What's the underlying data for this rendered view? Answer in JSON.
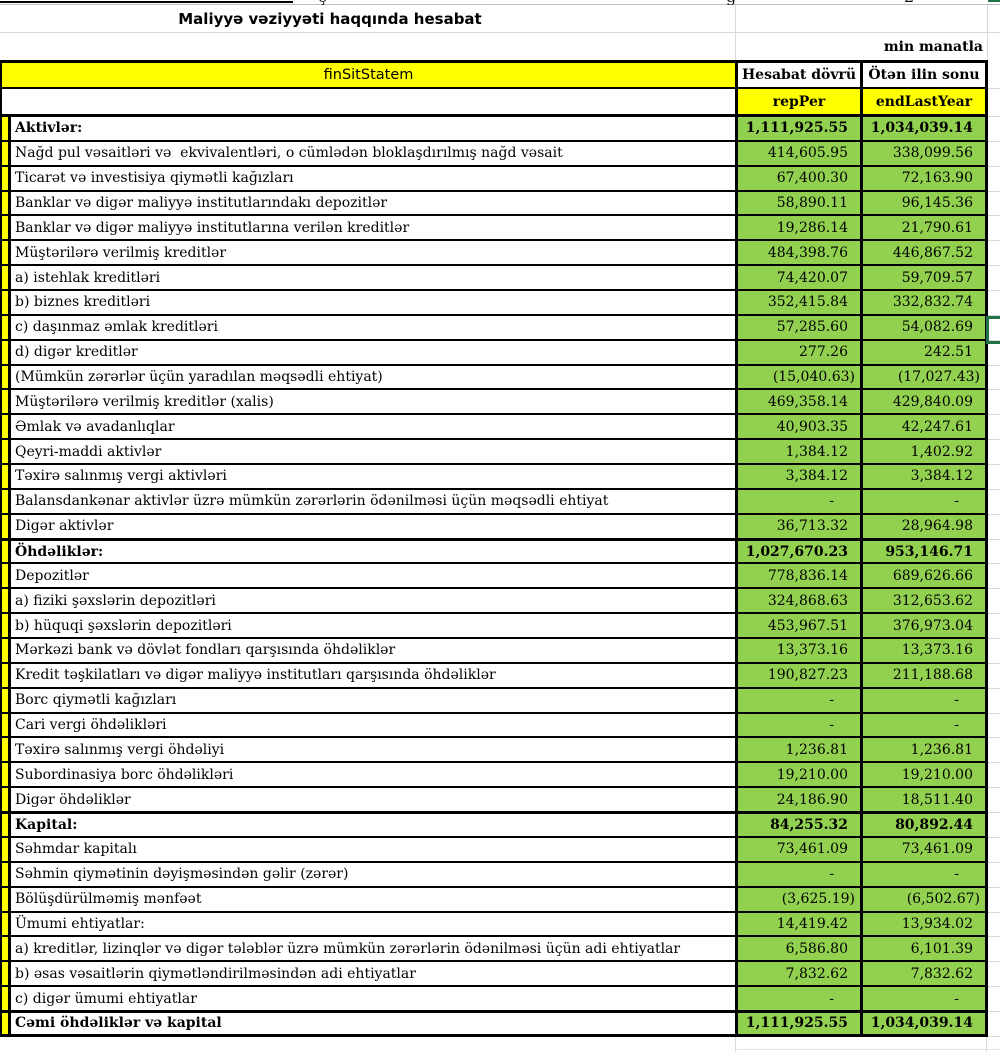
{
  "title": "Maliyyə vəziyyəti haqqında hesabat",
  "unit_note": "min manatla",
  "top_fragments": [
    "ç",
    "ğ",
    "2"
  ],
  "colors": {
    "header_fill": "#FFFF00",
    "value_fill": "#92D050",
    "selection_green": "#217346",
    "border": "#000000",
    "gridline": "#D9D9D9"
  },
  "table": {
    "name_header": "finSitStatem",
    "col_headers": [
      "Hesabat dövrü",
      "Ötən ilin sonu"
    ],
    "code_headers": [
      "repPer",
      "endLastYear"
    ],
    "selected_row_label": "c) daşınmaz əmlak kreditləri",
    "rows": [
      {
        "label": "Aktivlər:",
        "v1": "1,111,925.55",
        "v2": "1,034,039.14",
        "bold": true,
        "section": false
      },
      {
        "label": "Nağd pul vəsaitləri və  ekvivalentləri, o cümlədən bloklaşdırılmış nağd vəsait",
        "v1": "414,605.95",
        "v2": "338,099.56",
        "bold": false,
        "section": false
      },
      {
        "label": "Ticarət və investisiya qiymətli kağızları",
        "v1": "67,400.30",
        "v2": "72,163.90",
        "bold": false,
        "section": false
      },
      {
        "label": "Banklar və digər maliyyə institutlarındakı depozitlər",
        "v1": "58,890.11",
        "v2": "96,145.36",
        "bold": false,
        "section": false
      },
      {
        "label": "Banklar və digər maliyyə institutlarına verilən kreditlər",
        "v1": "19,286.14",
        "v2": "21,790.61",
        "bold": false,
        "section": false
      },
      {
        "label": "Müştərilərə verilmiş kreditlər",
        "v1": "484,398.76",
        "v2": "446,867.52",
        "bold": false,
        "section": false
      },
      {
        "label": "a) istehlak kreditləri",
        "v1": "74,420.07",
        "v2": "59,709.57",
        "bold": false,
        "section": false
      },
      {
        "label": "b) biznes kreditləri",
        "v1": "352,415.84",
        "v2": "332,832.74",
        "bold": false,
        "section": false
      },
      {
        "label": "c) daşınmaz əmlak kreditləri",
        "v1": "57,285.60",
        "v2": "54,082.69",
        "bold": false,
        "section": false
      },
      {
        "label": "d) digər kreditlər",
        "v1": "277.26",
        "v2": "242.51",
        "bold": false,
        "section": false
      },
      {
        "label": "(Mümkün zərərlər üçün yaradılan məqsədli ehtiyat)",
        "v1": "(15,040.63)",
        "v2": "(17,027.43)",
        "bold": false,
        "section": false
      },
      {
        "label": "Müştərilərə verilmiş kreditlər (xalis)",
        "v1": "469,358.14",
        "v2": "429,840.09",
        "bold": false,
        "section": false
      },
      {
        "label": "Əmlak və avadanlıqlar",
        "v1": "40,903.35",
        "v2": "42,247.61",
        "bold": false,
        "section": false
      },
      {
        "label": "Qeyri-maddi aktivlər",
        "v1": "1,384.12",
        "v2": "1,402.92",
        "bold": false,
        "section": false
      },
      {
        "label": "Təxirə salınmış vergi aktivləri",
        "v1": "3,384.12",
        "v2": "3,384.12",
        "bold": false,
        "section": false
      },
      {
        "label": "Balansdankənar aktivlər üzrə mümkün zərərlərin ödənilməsi üçün məqsədli ehtiyat",
        "v1": "-",
        "v2": "-",
        "bold": false,
        "section": false
      },
      {
        "label": "Digər aktivlər",
        "v1": "36,713.32",
        "v2": "28,964.98",
        "bold": false,
        "section": false
      },
      {
        "label": "Öhdəliklər:",
        "v1": "1,027,670.23",
        "v2": "953,146.71",
        "bold": true,
        "section": true
      },
      {
        "label": "Depozitlər",
        "v1": "778,836.14",
        "v2": "689,626.66",
        "bold": false,
        "section": false
      },
      {
        "label": "a) fiziki şəxslərin depozitləri",
        "v1": "324,868.63",
        "v2": "312,653.62",
        "bold": false,
        "section": false
      },
      {
        "label": "b) hüquqi şəxslərin depozitləri",
        "v1": "453,967.51",
        "v2": "376,973.04",
        "bold": false,
        "section": false
      },
      {
        "label": "Mərkəzi bank və dövlət fondları qarşısında öhdəliklər",
        "v1": "13,373.16",
        "v2": "13,373.16",
        "bold": false,
        "section": false
      },
      {
        "label": "Kredit təşkilatları və digər maliyyə institutları qarşısında öhdəliklər",
        "v1": "190,827.23",
        "v2": "211,188.68",
        "bold": false,
        "section": false
      },
      {
        "label": "Borc qiymətli kağızları",
        "v1": "-",
        "v2": "-",
        "bold": false,
        "section": false
      },
      {
        "label": "Cari vergi öhdəlikləri",
        "v1": "-",
        "v2": "-",
        "bold": false,
        "section": false
      },
      {
        "label": "Təxirə salınmış vergi öhdəliyi",
        "v1": "1,236.81",
        "v2": "1,236.81",
        "bold": false,
        "section": false
      },
      {
        "label": "Subordinasiya borc öhdəlikləri",
        "v1": "19,210.00",
        "v2": "19,210.00",
        "bold": false,
        "section": false
      },
      {
        "label": "Digər öhdəliklər",
        "v1": "24,186.90",
        "v2": "18,511.40",
        "bold": false,
        "section": false
      },
      {
        "label": "Kapital:",
        "v1": "84,255.32",
        "v2": "80,892.44",
        "bold": true,
        "section": true
      },
      {
        "label": "Səhmdar kapitalı",
        "v1": "73,461.09",
        "v2": "73,461.09",
        "bold": false,
        "section": false
      },
      {
        "label": "Səhmin qiymətinin dəyişməsindən gəlir (zərər)",
        "v1": "-",
        "v2": "-",
        "bold": false,
        "section": false
      },
      {
        "label": "Bölüşdürülməmiş mənfəət",
        "v1": "(3,625.19)",
        "v2": "(6,502.67)",
        "bold": false,
        "section": false
      },
      {
        "label": "Ümumi ehtiyatlar:",
        "v1": "14,419.42",
        "v2": "13,934.02",
        "bold": false,
        "section": false
      },
      {
        "label": "a) kreditlər, lizinqlər və digər tələblər üzrə mümkün zərərlərin ödənilməsi üçün adi ehtiyatlar",
        "v1": "6,586.80",
        "v2": "6,101.39",
        "bold": false,
        "section": false
      },
      {
        "label": "b) əsas vəsaitlərin qiymətləndirilməsindən adi ehtiyatlar",
        "v1": "7,832.62",
        "v2": "7,832.62",
        "bold": false,
        "section": false
      },
      {
        "label": "c) digər ümumi ehtiyatlar",
        "v1": "-",
        "v2": "-",
        "bold": false,
        "section": false
      },
      {
        "label": "Cəmi öhdəliklər və kapital",
        "v1": "1,111,925.55",
        "v2": "1,034,039.14",
        "bold": true,
        "section": true
      }
    ]
  }
}
